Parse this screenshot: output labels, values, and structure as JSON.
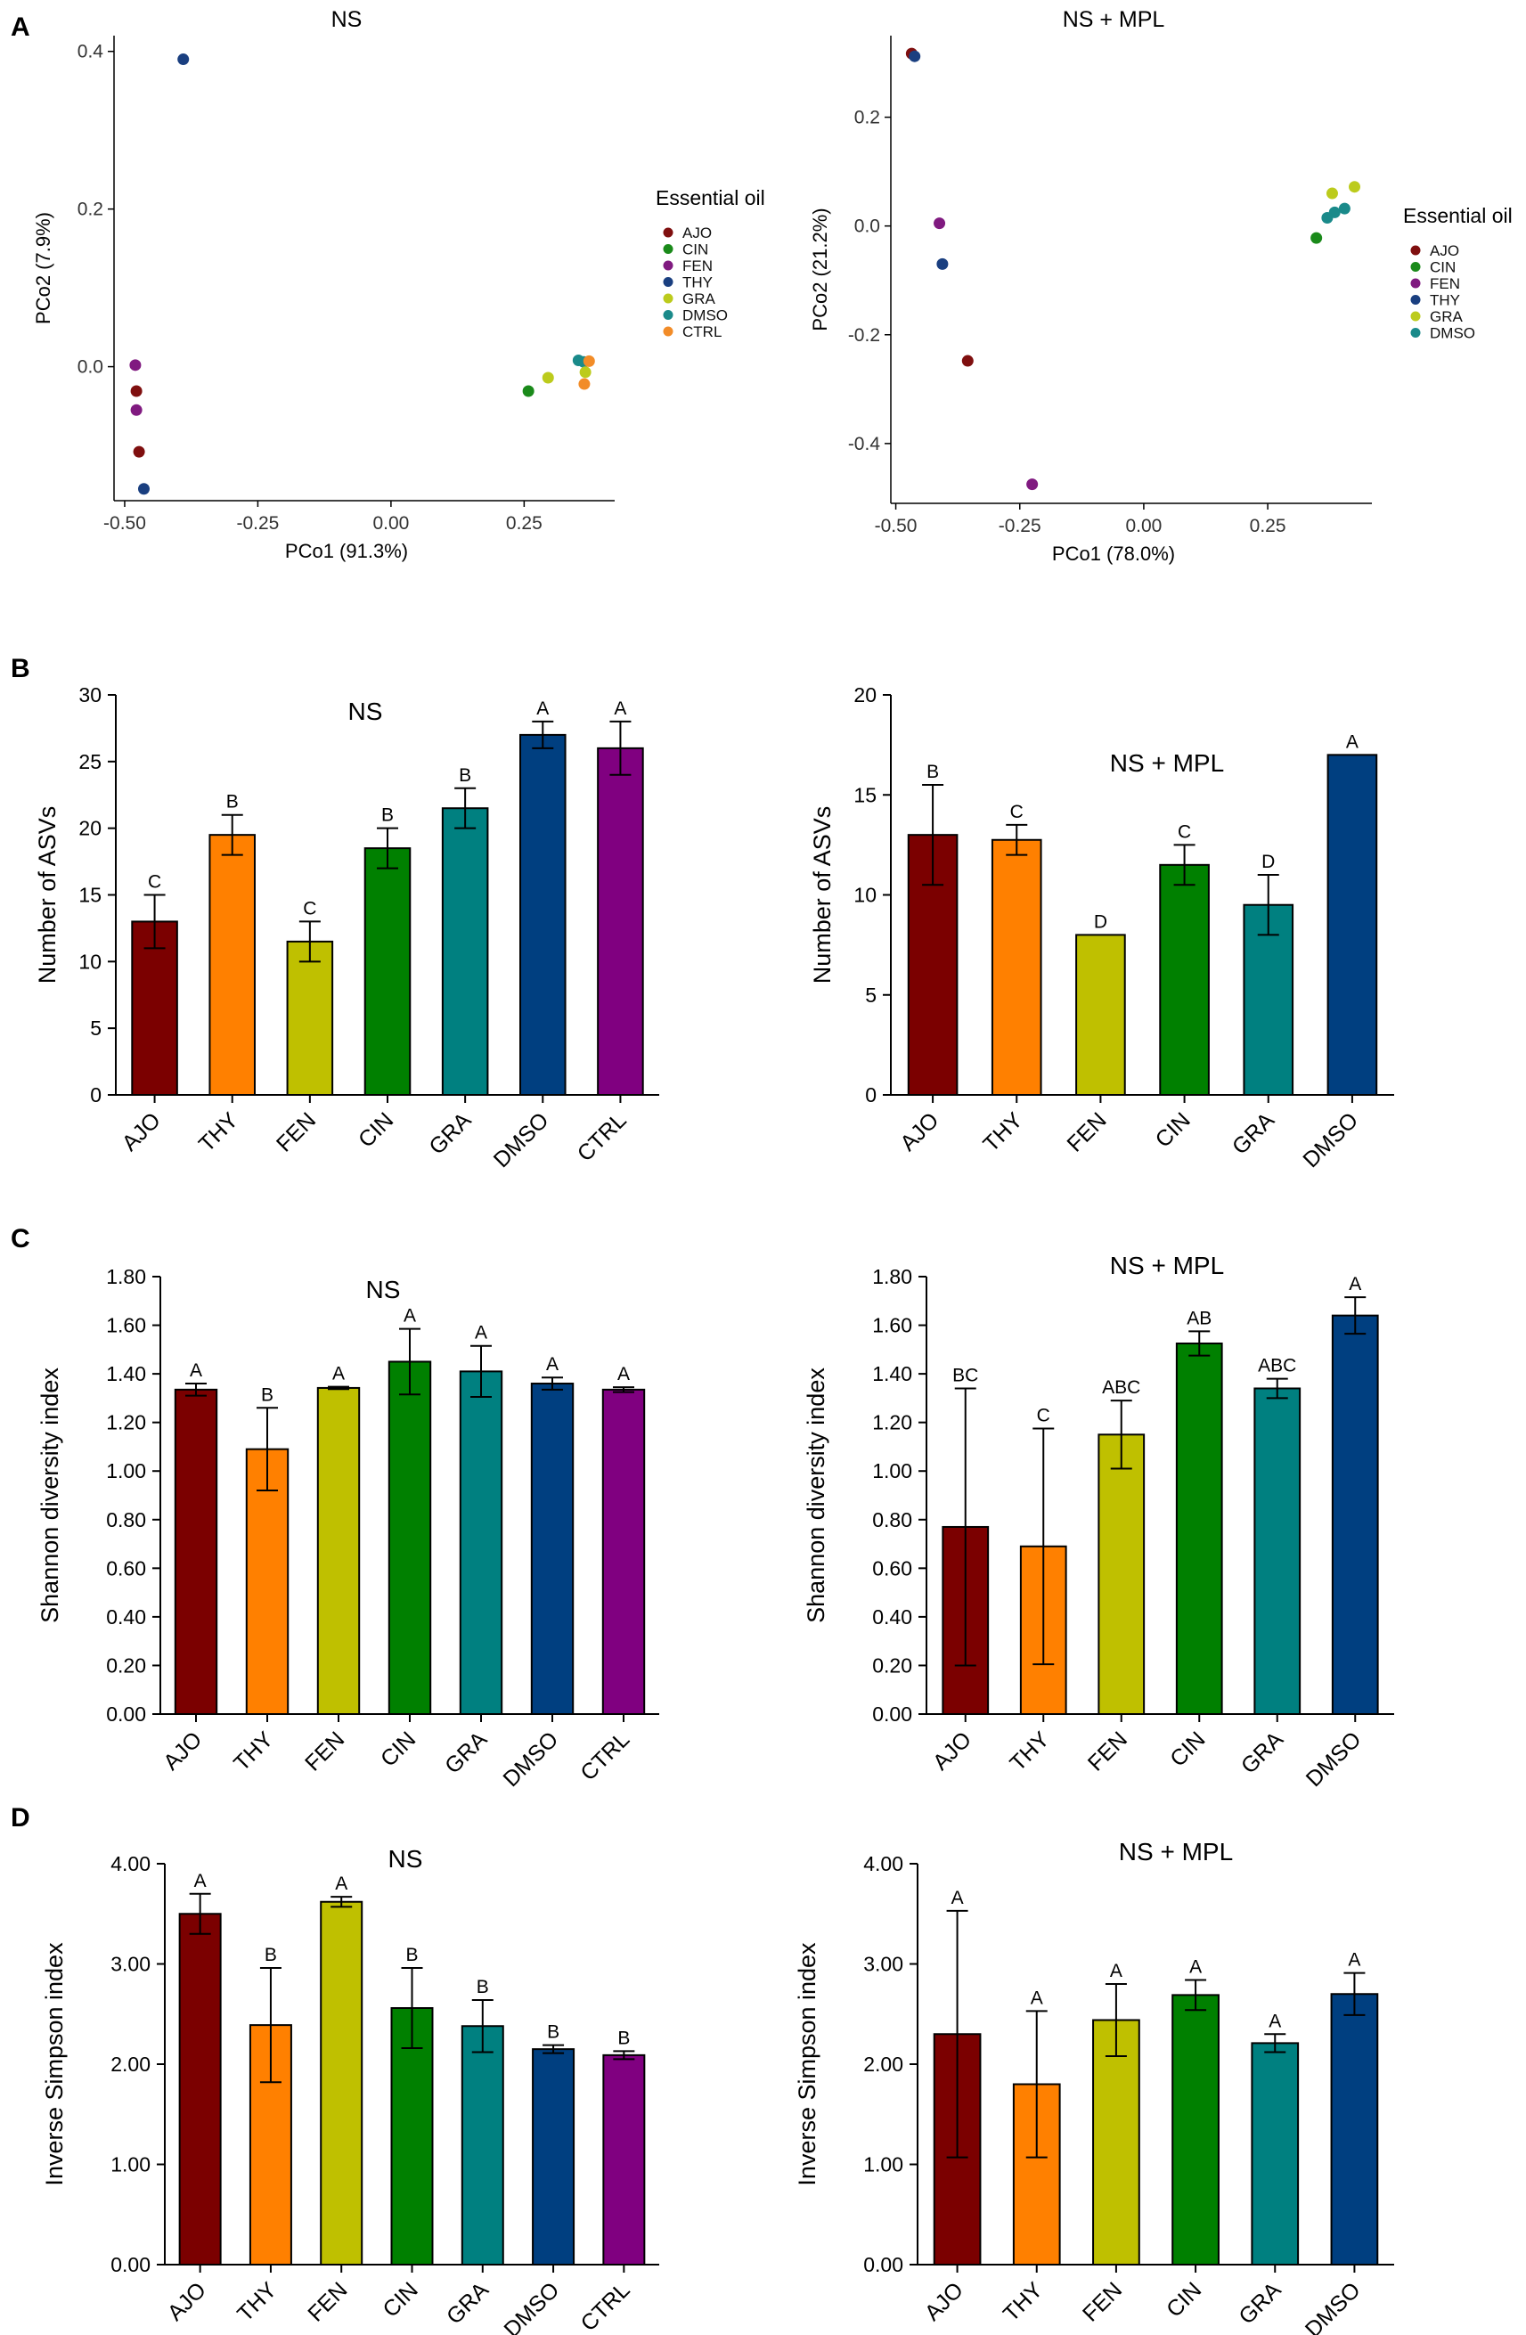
{
  "figure": {
    "panel_labels": [
      "A",
      "B",
      "C",
      "D"
    ]
  },
  "colors": {
    "AJO": "#7b0000",
    "THY": "#ff8000",
    "FEN": "#bfc000",
    "CIN": "#008000",
    "GRA": "#008080",
    "DMSO": "#003f80",
    "CTRL": "#800080"
  },
  "pcoa_colors": {
    "AJO": "#7f0f0f",
    "CIN": "#1a8a1a",
    "FEN": "#801a80",
    "THY": "#1a3f80",
    "GRA": "#bccb1c",
    "DMSO": "#1a8a8a",
    "CTRL": "#f28c28"
  },
  "chart_data": [
    {
      "panel": "A",
      "type": "scatter",
      "title": "NS",
      "xlabel": "PCo1 (91.3%)",
      "ylabel": "PCo2 (7.9%)",
      "xlim": [
        -0.52,
        0.42
      ],
      "ylim": [
        -0.17,
        0.42
      ],
      "xticks": [
        -0.5,
        -0.25,
        0.0,
        0.25
      ],
      "xtick_labels": [
        "-0.50",
        "-0.25",
        "0.00",
        "0.25"
      ],
      "yticks": [
        0.0,
        0.2,
        0.4
      ],
      "ytick_labels": [
        "0.0",
        "0.2",
        "0.4"
      ],
      "legend_title": "Essential oil",
      "legend": [
        "AJO",
        "CIN",
        "FEN",
        "THY",
        "GRA",
        "DMSO",
        "CTRL"
      ],
      "points": [
        {
          "group": "THY",
          "x": -0.39,
          "y": 0.39
        },
        {
          "group": "FEN",
          "x": -0.48,
          "y": 0.002
        },
        {
          "group": "AJO",
          "x": -0.478,
          "y": -0.031
        },
        {
          "group": "FEN",
          "x": -0.478,
          "y": -0.055
        },
        {
          "group": "AJO",
          "x": -0.473,
          "y": -0.108
        },
        {
          "group": "THY",
          "x": -0.464,
          "y": -0.155
        },
        {
          "group": "CIN",
          "x": 0.258,
          "y": -0.031
        },
        {
          "group": "GRA",
          "x": 0.295,
          "y": -0.014
        },
        {
          "group": "DMSO",
          "x": 0.352,
          "y": 0.008
        },
        {
          "group": "DMSO",
          "x": 0.362,
          "y": 0.006
        },
        {
          "group": "CTRL",
          "x": 0.372,
          "y": 0.007
        },
        {
          "group": "GRA",
          "x": 0.365,
          "y": -0.007
        },
        {
          "group": "CTRL",
          "x": 0.363,
          "y": -0.022
        }
      ]
    },
    {
      "panel": "A",
      "type": "scatter",
      "title": "NS + MPL",
      "xlabel": "PCo1 (78.0%)",
      "ylabel": "PCo2 (21.2%)",
      "xlim": [
        -0.51,
        0.46
      ],
      "ylim": [
        -0.51,
        0.35
      ],
      "xticks": [
        -0.5,
        -0.25,
        0.0,
        0.25
      ],
      "xtick_labels": [
        "-0.50",
        "-0.25",
        "0.00",
        "0.25"
      ],
      "yticks": [
        -0.4,
        -0.2,
        0.0,
        0.2
      ],
      "ytick_labels": [
        "-0.4",
        "-0.2",
        "0.0",
        "0.2"
      ],
      "legend_title": "Essential oil",
      "legend": [
        "AJO",
        "CIN",
        "FEN",
        "THY",
        "GRA",
        "DMSO"
      ],
      "points": [
        {
          "group": "AJO",
          "x": -0.468,
          "y": 0.317
        },
        {
          "group": "THY",
          "x": -0.462,
          "y": 0.312
        },
        {
          "group": "FEN",
          "x": -0.412,
          "y": 0.005
        },
        {
          "group": "THY",
          "x": -0.406,
          "y": -0.07
        },
        {
          "group": "AJO",
          "x": -0.355,
          "y": -0.248
        },
        {
          "group": "FEN",
          "x": -0.225,
          "y": -0.475
        },
        {
          "group": "CIN",
          "x": 0.348,
          "y": -0.022
        },
        {
          "group": "DMSO",
          "x": 0.37,
          "y": 0.015
        },
        {
          "group": "DMSO",
          "x": 0.385,
          "y": 0.025
        },
        {
          "group": "DMSO",
          "x": 0.405,
          "y": 0.032
        },
        {
          "group": "GRA",
          "x": 0.38,
          "y": 0.06
        },
        {
          "group": "GRA",
          "x": 0.425,
          "y": 0.072
        }
      ]
    },
    {
      "panel": "B",
      "type": "bar",
      "title": "NS",
      "ylabel": "Number of  ASVs",
      "categories": [
        "AJO",
        "THY",
        "FEN",
        "CIN",
        "GRA",
        "DMSO",
        "CTRL"
      ],
      "values": [
        13,
        19.5,
        11.5,
        18.5,
        21.5,
        27,
        26
      ],
      "errors": [
        2,
        1.5,
        1.5,
        1.5,
        1.5,
        1,
        2
      ],
      "letters": [
        "C",
        "B",
        "C",
        "B",
        "B",
        "A",
        "A"
      ],
      "ylim": [
        0,
        30
      ],
      "yticks": [
        0,
        5,
        10,
        15,
        20,
        25,
        30
      ],
      "ytick_labels": [
        "0",
        "5",
        "10",
        "15",
        "20",
        "25",
        "30"
      ]
    },
    {
      "panel": "B",
      "type": "bar",
      "title": "NS + MPL",
      "ylabel": "Number of  ASVs",
      "categories": [
        "AJO",
        "THY",
        "FEN",
        "CIN",
        "GRA",
        "DMSO"
      ],
      "values": [
        13,
        12.75,
        8,
        11.5,
        9.5,
        17
      ],
      "errors": [
        2.5,
        0.75,
        0,
        1,
        1.5,
        0
      ],
      "letters": [
        "B",
        "C",
        "D",
        "C",
        "D",
        "A"
      ],
      "ylim": [
        0,
        20
      ],
      "yticks": [
        0,
        5,
        10,
        15,
        20
      ],
      "ytick_labels": [
        "0",
        "5",
        "10",
        "15",
        "20"
      ]
    },
    {
      "panel": "C",
      "type": "bar",
      "title": "NS",
      "ylabel": "Shannon diversity index",
      "categories": [
        "AJO",
        "THY",
        "FEN",
        "CIN",
        "GRA",
        "DMSO",
        "CTRL"
      ],
      "values": [
        1.335,
        1.09,
        1.342,
        1.45,
        1.41,
        1.36,
        1.335
      ],
      "errors": [
        0.025,
        0.17,
        0.005,
        0.135,
        0.105,
        0.025,
        0.01
      ],
      "letters": [
        "A",
        "B",
        "A",
        "A",
        "A",
        "A",
        "A"
      ],
      "ylim": [
        0,
        1.8
      ],
      "yticks": [
        0,
        0.2,
        0.4,
        0.6,
        0.8,
        1.0,
        1.2,
        1.4,
        1.6,
        1.8
      ],
      "ytick_labels": [
        "0.00",
        "0.20",
        "0.40",
        "0.60",
        "0.80",
        "1.00",
        "1.20",
        "1.40",
        "1.60",
        "1.80"
      ]
    },
    {
      "panel": "C",
      "type": "bar",
      "title": "NS + MPL",
      "ylabel": "Shannon diversity index",
      "categories": [
        "AJO",
        "THY",
        "FEN",
        "CIN",
        "GRA",
        "DMSO"
      ],
      "values": [
        0.77,
        0.69,
        1.15,
        1.525,
        1.34,
        1.64
      ],
      "errors": [
        0.57,
        0.485,
        0.14,
        0.05,
        0.04,
        0.075
      ],
      "letters": [
        "BC",
        "C",
        "ABC",
        "AB",
        "ABC",
        "A"
      ],
      "ylim": [
        0,
        1.8
      ],
      "yticks": [
        0,
        0.2,
        0.4,
        0.6,
        0.8,
        1.0,
        1.2,
        1.4,
        1.6,
        1.8
      ],
      "ytick_labels": [
        "0.00",
        "0.20",
        "0.40",
        "0.60",
        "0.80",
        "1.00",
        "1.20",
        "1.40",
        "1.60",
        "1.80"
      ]
    },
    {
      "panel": "D",
      "type": "bar",
      "title": "NS",
      "ylabel": "Inverse Simpson index",
      "categories": [
        "AJO",
        "THY",
        "FEN",
        "CIN",
        "GRA",
        "DMSO",
        "CTRL"
      ],
      "values": [
        3.5,
        2.39,
        3.62,
        2.56,
        2.38,
        2.15,
        2.09
      ],
      "errors": [
        0.2,
        0.57,
        0.05,
        0.4,
        0.26,
        0.04,
        0.04
      ],
      "letters": [
        "A",
        "B",
        "A",
        "B",
        "B",
        "B",
        "B"
      ],
      "ylim": [
        0,
        4
      ],
      "yticks": [
        0,
        1,
        2,
        3,
        4
      ],
      "ytick_labels": [
        "0.00",
        "1.00",
        "2.00",
        "3.00",
        "4.00"
      ]
    },
    {
      "panel": "D",
      "type": "bar",
      "title": "NS + MPL",
      "ylabel": "Inverse Simpson index",
      "categories": [
        "AJO",
        "THY",
        "FEN",
        "CIN",
        "GRA",
        "DMSO"
      ],
      "values": [
        2.3,
        1.8,
        2.44,
        2.69,
        2.21,
        2.7
      ],
      "errors": [
        1.23,
        0.73,
        0.36,
        0.15,
        0.09,
        0.21
      ],
      "letters": [
        "A",
        "A",
        "A",
        "A",
        "A",
        "A"
      ],
      "ylim": [
        0,
        4
      ],
      "yticks": [
        0,
        1,
        2,
        3,
        4
      ],
      "ytick_labels": [
        "0.00",
        "1.00",
        "2.00",
        "3.00",
        "4.00"
      ]
    }
  ]
}
